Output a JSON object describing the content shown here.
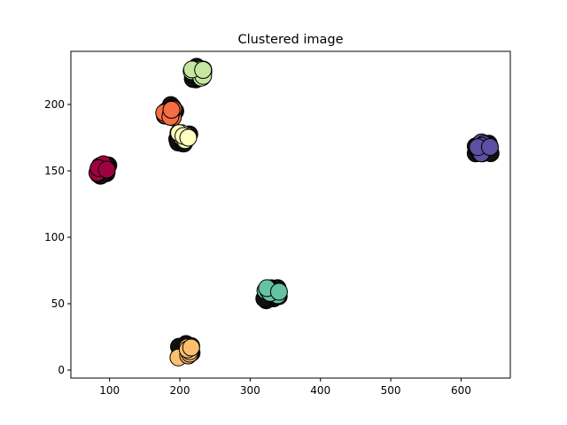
{
  "chart_data": {
    "type": "scatter",
    "title": "Clustered image",
    "xlabel": "",
    "ylabel": "",
    "xlim": [
      45,
      670
    ],
    "ylim": [
      -6,
      240
    ],
    "xticks": [
      100,
      200,
      300,
      400,
      500,
      600
    ],
    "yticks": [
      0,
      50,
      100,
      150,
      200
    ],
    "grid": false,
    "legend": "none",
    "marker_edge_color": "#000000",
    "clusters": [
      {
        "color": "#9e0142",
        "center": [
          88,
          150
        ],
        "highlight": [
          96,
          151
        ]
      },
      {
        "color": "#f46d43",
        "center": [
          182,
          194
        ],
        "highlight": [
          188,
          196
        ]
      },
      {
        "color": "#ffffbf",
        "center": [
          203,
          175
        ],
        "highlight": [
          212,
          175
        ]
      },
      {
        "color": "#c6e79f",
        "center": [
          222,
          222
        ],
        "highlight": [
          233,
          226
        ]
      },
      {
        "color": "#fdbf6f",
        "center": [
          205,
          14
        ],
        "highlight": [
          216,
          17
        ]
      },
      {
        "color": "#66c2a5",
        "center": [
          328,
          57
        ],
        "highlight": [
          341,
          59
        ]
      },
      {
        "color": "#5e4fa2",
        "center": [
          625,
          167
        ],
        "highlight": [
          641,
          168
        ]
      }
    ]
  }
}
